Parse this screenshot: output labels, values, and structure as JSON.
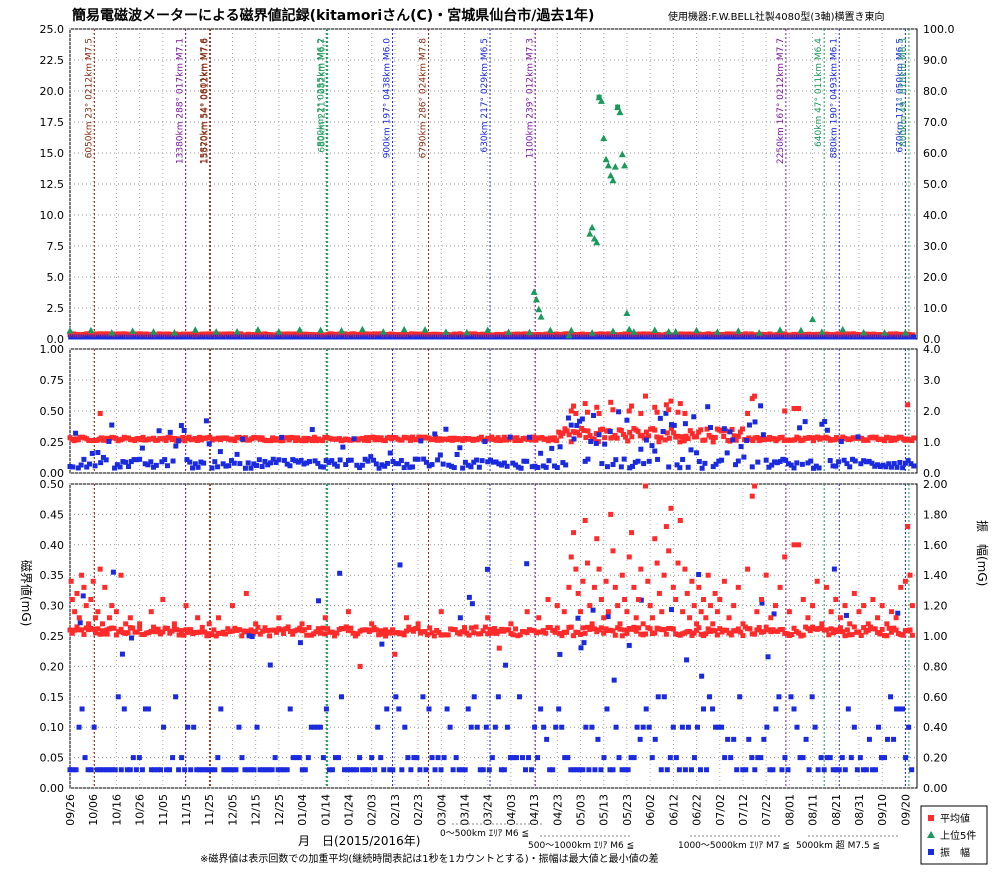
{
  "chart_data": {
    "type": "scatter",
    "title": "簡易電磁波メーターによる磁界値記録(kitamoriさん(C)・宮城県仙台市/過去1年)",
    "device": "使用機器:F.W.BELL社製4080型(3軸)横置き東向",
    "xlabel": "月　日(2015/2016年)",
    "ylabel_left": "磁界値(mG)",
    "ylabel_right": "振　幅(mG)",
    "note": "※磁界値は表示回数での加重平均(継続時間表記は1秒を1カウントとする)・振幅は最大値と最小値の差",
    "x_ticks": [
      "09/26",
      "10/06",
      "10/16",
      "10/26",
      "11/05",
      "11/15",
      "11/25",
      "12/05",
      "12/15",
      "12/25",
      "01/04",
      "01/14",
      "01/24",
      "02/03",
      "02/13",
      "02/23",
      "03/04",
      "03/14",
      "03/24",
      "04/03",
      "04/13",
      "04/23",
      "05/03",
      "05/13",
      "05/23",
      "06/02",
      "06/12",
      "06/22",
      "07/02",
      "07/12",
      "07/22",
      "08/01",
      "08/11",
      "08/21",
      "08/31",
      "09/10",
      "09/20"
    ],
    "legend": [
      {
        "label": "平均値",
        "color": "#ff2a2a",
        "marker": "square"
      },
      {
        "label": "上位5件",
        "color": "#1a9a5a",
        "marker": "triangle"
      },
      {
        "label": "振　幅",
        "color": "#1a2adf",
        "marker": "square"
      }
    ],
    "distance_legend": [
      {
        "label": "0～500km ｴﾘｱ M6 ≦",
        "color": "#1a2adf"
      },
      {
        "label": "500～1000km ｴﾘｱ M6 ≦",
        "color": "#1a9a5a"
      },
      {
        "label": "1000～5000km ｴﾘｱ M7 ≦",
        "color": "#7a1aa0"
      },
      {
        "label": "5000km 超 M7.5 ≦",
        "color": "#8a2a10"
      }
    ],
    "panels": [
      {
        "name": "top",
        "ylim_left": [
          0,
          25
        ],
        "yticks_left": [
          "25.0",
          "22.5",
          "20.0",
          "17.5",
          "15.0",
          "12.5",
          "10.0",
          "7.5",
          "5.0",
          "2.5",
          "0.0"
        ],
        "ylim_right": [
          0,
          100
        ],
        "yticks_right": [
          "100.0",
          "90.0",
          "80.0",
          "70.0",
          "60.0",
          "50.0",
          "40.0",
          "30.0",
          "20.0",
          "10.0",
          "0.0"
        ]
      },
      {
        "name": "middle",
        "ylim_left": [
          0,
          1
        ],
        "yticks_left": [
          "1.00",
          "0.75",
          "0.50",
          "0.25",
          "0.00"
        ],
        "ylim_right": [
          0,
          4
        ],
        "yticks_right": [
          "4.0",
          "3.0",
          "2.0",
          "1.0",
          "0.0"
        ]
      },
      {
        "name": "bottom",
        "ylim_left": [
          0,
          0.5
        ],
        "yticks_left": [
          "0.50",
          "0.45",
          "0.40",
          "0.35",
          "0.30",
          "0.25",
          "0.20",
          "0.15",
          "0.10",
          "0.05",
          "0.00"
        ],
        "ylim_right": [
          0,
          2
        ],
        "yticks_right": [
          "2.00",
          "1.80",
          "1.60",
          "1.40",
          "1.20",
          "1.00",
          "0.80",
          "0.60",
          "0.40",
          "0.20",
          "0.00"
        ]
      }
    ],
    "earthquakes": [
      {
        "day": 10.5,
        "label": "6050km 23° 0212km M7.5",
        "color": "#8a2a10"
      },
      {
        "day": 49.8,
        "label": "13380km 288° 017km M7.1",
        "color": "#7a1aa0"
      },
      {
        "day": 60.5,
        "label": "15570km 54° 0612km M7.6",
        "color": "#8a2a10"
      },
      {
        "day": 60.2,
        "label": "15820km 54° 0601km M7.6",
        "color": "#8a2a10"
      },
      {
        "day": 110.5,
        "label": "800km 2° 0255km M6.2",
        "color": "#1a9a5a"
      },
      {
        "day": 111.0,
        "label": "680km 211° 082km M6.7",
        "color": "#1a9a5a"
      },
      {
        "day": 139.0,
        "label": "900km 197° 0438km M6.0",
        "color": "#1a2adf"
      },
      {
        "day": 154.5,
        "label": "6790km 286° 024km M7.8",
        "color": "#8a2a10"
      },
      {
        "day": 181.0,
        "label": "630km 217° 029km M6.5",
        "color": "#1a2adf"
      },
      {
        "day": 200.5,
        "label": "1100km 239° 012km M7.3",
        "color": "#7a1aa0"
      },
      {
        "day": 308.5,
        "label": "2250km 167° 0212km M7.7",
        "color": "#7a1aa0"
      },
      {
        "day": 325.0,
        "label": "640km 47° 011km M6.4",
        "color": "#1a9a5a"
      },
      {
        "day": 331.5,
        "label": "880km 190° 0493km M6.1",
        "color": "#1a2adf"
      },
      {
        "day": 360.0,
        "label": "670km 171° 050km M6.5",
        "color": "#1a2adf"
      },
      {
        "day": 361.5,
        "label": "800km 49° 010km M6.3",
        "color": "#1a9a5a"
      }
    ],
    "red_outliers": [
      [
        0.5,
        0.34
      ],
      [
        1,
        0.31
      ],
      [
        2,
        0.29
      ],
      [
        3,
        0.32
      ],
      [
        4,
        0.28
      ],
      [
        5,
        0.35
      ],
      [
        6,
        0.33
      ],
      [
        7,
        0.3
      ],
      [
        8,
        0.27
      ],
      [
        9,
        0.31
      ],
      [
        10,
        0.34
      ],
      [
        11,
        0.28
      ],
      [
        12,
        0.29
      ],
      [
        13,
        0.36
      ],
      [
        14,
        0.27
      ],
      [
        15,
        0.33
      ],
      [
        16,
        0.26
      ],
      [
        17,
        0.28
      ],
      [
        18,
        0.3
      ],
      [
        20,
        0.29
      ],
      [
        22,
        0.35
      ],
      [
        24,
        0.27
      ],
      [
        26,
        0.28
      ],
      [
        30,
        0.27
      ],
      [
        35,
        0.29
      ],
      [
        40,
        0.31
      ],
      [
        45,
        0.27
      ],
      [
        50,
        0.3
      ],
      [
        55,
        0.28
      ],
      [
        60,
        0.27
      ],
      [
        64,
        0.28
      ],
      [
        70,
        0.3
      ],
      [
        76,
        0.32
      ],
      [
        80,
        0.27
      ],
      [
        90,
        0.28
      ],
      [
        100,
        0.27
      ],
      [
        110,
        0.28
      ],
      [
        120,
        0.29
      ],
      [
        125,
        0.2
      ],
      [
        130,
        0.27
      ],
      [
        136,
        0.25
      ],
      [
        140,
        0.22
      ],
      [
        145,
        0.28
      ],
      [
        150,
        0.27
      ],
      [
        160,
        0.29
      ],
      [
        170,
        0.26
      ],
      [
        180,
        0.28
      ],
      [
        185,
        0.23
      ],
      [
        190,
        0.27
      ],
      [
        197,
        0.29
      ],
      [
        202,
        0.28
      ],
      [
        206,
        0.31
      ],
      [
        210,
        0.3
      ],
      [
        213,
        0.29
      ],
      [
        215,
        0.33
      ],
      [
        216,
        0.38
      ],
      [
        217,
        0.42
      ],
      [
        218,
        0.36
      ],
      [
        219,
        0.32
      ],
      [
        220,
        0.29
      ],
      [
        221,
        0.34
      ],
      [
        222,
        0.44
      ],
      [
        223,
        0.37
      ],
      [
        224,
        0.3
      ],
      [
        225,
        0.27
      ],
      [
        226,
        0.33
      ],
      [
        227,
        0.41
      ],
      [
        228,
        0.36
      ],
      [
        229,
        0.31
      ],
      [
        230,
        0.28
      ],
      [
        231,
        0.34
      ],
      [
        232,
        0.29
      ],
      [
        233,
        0.45
      ],
      [
        234,
        0.39
      ],
      [
        235,
        0.33
      ],
      [
        236,
        0.3
      ],
      [
        237,
        0.27
      ],
      [
        238,
        0.35
      ],
      [
        239,
        0.31
      ],
      [
        240,
        0.29
      ],
      [
        241,
        0.38
      ],
      [
        242,
        0.42
      ],
      [
        243,
        0.33
      ],
      [
        244,
        0.28
      ],
      [
        245,
        0.31
      ],
      [
        246,
        0.36
      ],
      [
        247,
        0.27
      ],
      [
        248,
        0.5
      ],
      [
        249,
        0.34
      ],
      [
        250,
        0.3
      ],
      [
        251,
        0.28
      ],
      [
        252,
        0.41
      ],
      [
        253,
        0.37
      ],
      [
        254,
        0.32
      ],
      [
        255,
        0.29
      ],
      [
        256,
        0.35
      ],
      [
        257,
        0.43
      ],
      [
        258,
        0.39
      ],
      [
        259,
        0.46
      ],
      [
        260,
        0.33
      ],
      [
        261,
        0.31
      ],
      [
        262,
        0.37
      ],
      [
        263,
        0.44
      ],
      [
        264,
        0.29
      ],
      [
        265,
        0.36
      ],
      [
        266,
        0.32
      ],
      [
        267,
        0.28
      ],
      [
        268,
        0.34
      ],
      [
        269,
        0.3
      ],
      [
        270,
        0.27
      ],
      [
        271,
        0.33
      ],
      [
        272,
        0.29
      ],
      [
        273,
        0.31
      ],
      [
        274,
        0.28
      ],
      [
        275,
        0.35
      ],
      [
        276,
        0.3
      ],
      [
        277,
        0.27
      ],
      [
        278,
        0.32
      ],
      [
        279,
        0.29
      ],
      [
        280,
        0.31
      ],
      [
        282,
        0.34
      ],
      [
        284,
        0.28
      ],
      [
        286,
        0.3
      ],
      [
        288,
        0.33
      ],
      [
        290,
        0.27
      ],
      [
        292,
        0.36
      ],
      [
        294,
        0.48
      ],
      [
        295,
        0.5
      ],
      [
        296,
        0.29
      ],
      [
        298,
        0.31
      ],
      [
        300,
        0.35
      ],
      [
        302,
        0.28
      ],
      [
        304,
        0.3
      ],
      [
        306,
        0.33
      ],
      [
        308,
        0.38
      ],
      [
        310,
        0.29
      ],
      [
        312,
        0.4
      ],
      [
        314,
        0.4
      ],
      [
        316,
        0.31
      ],
      [
        318,
        0.28
      ],
      [
        320,
        0.3
      ],
      [
        322,
        0.34
      ],
      [
        324,
        0.27
      ],
      [
        326,
        0.33
      ],
      [
        328,
        0.29
      ],
      [
        330,
        0.31
      ],
      [
        332,
        0.28
      ],
      [
        334,
        0.3
      ],
      [
        336,
        0.27
      ],
      [
        338,
        0.32
      ],
      [
        340,
        0.29
      ],
      [
        342,
        0.3
      ],
      [
        344,
        0.27
      ],
      [
        346,
        0.31
      ],
      [
        348,
        0.28
      ],
      [
        350,
        0.3
      ],
      [
        352,
        0.27
      ],
      [
        354,
        0.29
      ],
      [
        356,
        0.28
      ],
      [
        358,
        0.33
      ],
      [
        360,
        0.34
      ],
      [
        361,
        0.43
      ],
      [
        362,
        0.35
      ],
      [
        363,
        0.3
      ]
    ],
    "green_top5": [
      [
        200,
        3.8
      ],
      [
        201,
        3.2
      ],
      [
        202,
        2.4
      ],
      [
        203,
        1.8
      ],
      [
        215,
        0.3
      ],
      [
        224,
        8.5
      ],
      [
        225,
        9.0
      ],
      [
        226,
        8.1
      ],
      [
        227,
        7.8
      ],
      [
        228,
        19.5
      ],
      [
        229,
        19.2
      ],
      [
        230,
        16.2
      ],
      [
        231,
        14.5
      ],
      [
        232,
        14.0
      ],
      [
        233,
        13.2
      ],
      [
        234,
        12.8
      ],
      [
        235,
        13.9
      ],
      [
        236,
        18.7
      ],
      [
        237,
        18.3
      ],
      [
        238,
        14.9
      ],
      [
        239,
        14.0
      ],
      [
        240,
        2.1
      ],
      [
        241,
        0.8
      ],
      [
        258,
        0.6
      ],
      [
        320,
        1.6
      ]
    ]
  }
}
